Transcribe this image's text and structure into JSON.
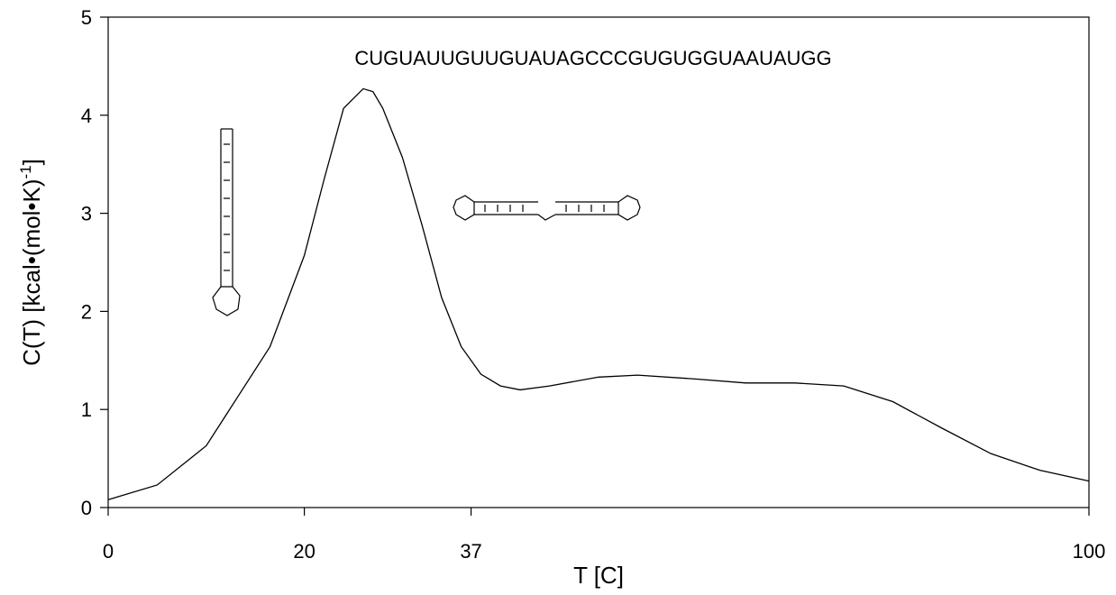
{
  "chart_data": {
    "type": "line",
    "annotation": "CUGUAUUGUUGUAUAGCCCGUGUGGUAAUAUGG",
    "xlabel": "T [C]",
    "ylabel": {
      "text": "C(T) [kcal•(mol•K)",
      "superscript": "-1",
      "suffix": "]"
    },
    "x": [
      0,
      5,
      10,
      16.5,
      20,
      22,
      24,
      26,
      27,
      28,
      30,
      32,
      34,
      36,
      38,
      40,
      42,
      45,
      50,
      54,
      60,
      65,
      70,
      75,
      80,
      85,
      90,
      95,
      100
    ],
    "values": [
      0.08,
      0.23,
      0.63,
      1.64,
      2.57,
      3.34,
      4.07,
      4.27,
      4.24,
      4.07,
      3.57,
      2.88,
      2.14,
      1.64,
      1.36,
      1.24,
      1.2,
      1.24,
      1.33,
      1.35,
      1.31,
      1.27,
      1.27,
      1.24,
      1.08,
      0.81,
      0.55,
      0.38,
      0.27
    ],
    "color": "#000000",
    "xlim": [
      0,
      100
    ],
    "xticks": [
      0,
      20,
      37,
      100
    ],
    "ylim": [
      0,
      5
    ],
    "yticks": [
      0,
      1,
      2,
      3,
      4,
      5
    ]
  }
}
